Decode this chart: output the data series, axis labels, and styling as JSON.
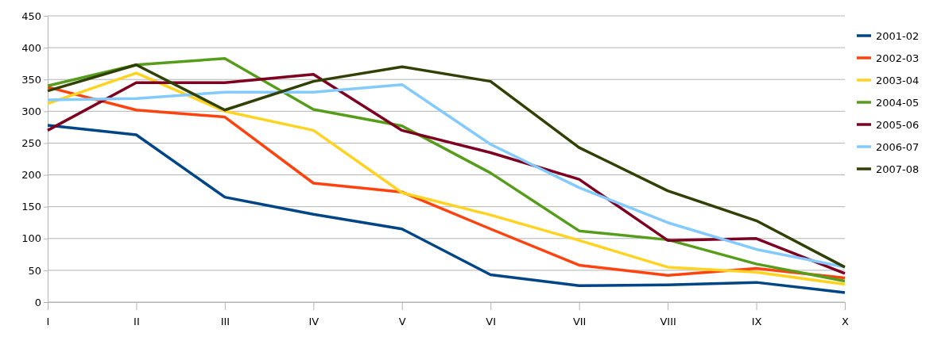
{
  "chart_data": {
    "type": "line",
    "categories": [
      "I",
      "II",
      "III",
      "IV",
      "V",
      "VI",
      "VII",
      "VIII",
      "IX",
      "X"
    ],
    "ylim": [
      0,
      450
    ],
    "yticks": [
      0,
      50,
      100,
      150,
      200,
      250,
      300,
      350,
      400,
      450
    ],
    "grid": "y",
    "legend": "right",
    "marker": "none",
    "line_style": "solid",
    "series": [
      {
        "name": "2001-02",
        "color": "#004586",
        "values": [
          278,
          263,
          165,
          138,
          115,
          43,
          26,
          27,
          31,
          15
        ]
      },
      {
        "name": "2002-03",
        "color": "#ff420e",
        "values": [
          338,
          302,
          291,
          187,
          173,
          115,
          58,
          42,
          53,
          38
        ]
      },
      {
        "name": "2003-04",
        "color": "#ffd320",
        "values": [
          312,
          360,
          300,
          270,
          172,
          137,
          97,
          55,
          47,
          28
        ]
      },
      {
        "name": "2004-05",
        "color": "#579d1c",
        "values": [
          340,
          373,
          383,
          303,
          277,
          203,
          112,
          98,
          60,
          33
        ]
      },
      {
        "name": "2005-06",
        "color": "#7e0021",
        "values": [
          270,
          345,
          345,
          358,
          270,
          235,
          193,
          97,
          100,
          45
        ]
      },
      {
        "name": "2006-07",
        "color": "#83caff",
        "values": [
          318,
          320,
          330,
          330,
          342,
          248,
          180,
          125,
          83,
          55
        ]
      },
      {
        "name": "2007-08",
        "color": "#314004",
        "values": [
          332,
          373,
          302,
          347,
          370,
          347,
          243,
          175,
          128,
          55
        ]
      }
    ]
  }
}
